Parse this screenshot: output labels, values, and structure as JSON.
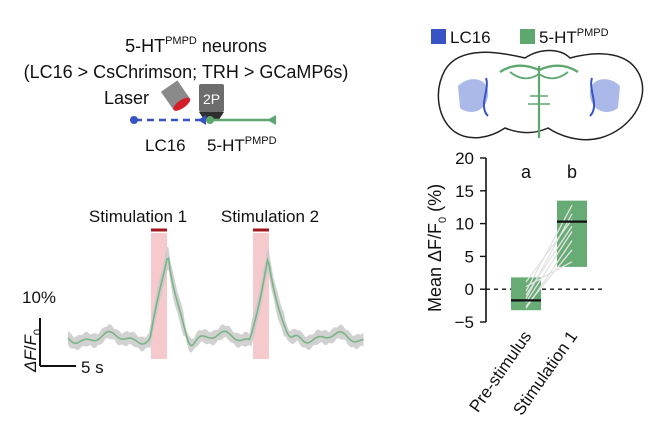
{
  "header": {
    "title_main": "5-HT",
    "title_sup": "PMPD",
    "title_rest": " neurons",
    "subtitle": "(LC16 > CsChrimson; TRH > GCaMP6s)"
  },
  "schematic": {
    "laser_label": "Laser",
    "imaging_label": "2P",
    "lc16_label": "LC16",
    "target_main": "5-HT",
    "target_sup": "PMPD"
  },
  "trace": {
    "stim1_label": "Stimulation 1",
    "stim2_label": "Stimulation 2",
    "scale_y_label": "10%",
    "scale_y_axis": "ΔF/F",
    "scale_y_sub": "0",
    "scale_x_label": "5 s",
    "stim_color": "#f6c9cd",
    "stim_bar_color": "#a3171c",
    "trace_color": "#79b585",
    "sem_color": "#c8c8c8"
  },
  "legend": {
    "items": [
      {
        "label_main": "LC16",
        "label_sup": "",
        "color": "#3853c4"
      },
      {
        "label_main": "5-HT",
        "label_sup": "PMPD",
        "color": "#5ea76f"
      }
    ]
  },
  "colors": {
    "lc16": "#3853c4",
    "serotonin": "#5ea76f",
    "lc16_light": "#8fa1e2"
  },
  "chart_data": {
    "type": "box",
    "categories": [
      "Pre-stimulus",
      "Stimulation 1"
    ],
    "ylabel_main": "Mean ΔF/F",
    "ylabel_sub": "0",
    "ylabel_unit": " (%)",
    "ylim": [
      -5,
      20
    ],
    "yticks": [
      -5,
      0,
      5,
      10,
      15,
      20
    ],
    "ytick_labels": [
      "−5",
      "0",
      "5",
      "10",
      "15",
      "20"
    ],
    "significance": [
      "a",
      "b"
    ],
    "boxes": [
      {
        "category": "Pre-stimulus",
        "low": -3.2,
        "high": 1.8,
        "median": -1.7
      },
      {
        "category": "Stimulation 1",
        "low": 3.4,
        "high": 13.5,
        "median": 10.3
      }
    ],
    "paired_lines": [
      [
        -2.6,
        6.0
      ],
      [
        -2.0,
        8.8
      ],
      [
        -1.4,
        11.5
      ],
      [
        -0.9,
        9.6
      ],
      [
        -0.3,
        12.8
      ],
      [
        0.4,
        4.2
      ],
      [
        1.1,
        10.6
      ],
      [
        -2.9,
        7.4
      ]
    ],
    "baseline": 0,
    "grid": false,
    "box_color": "#67ab75"
  }
}
